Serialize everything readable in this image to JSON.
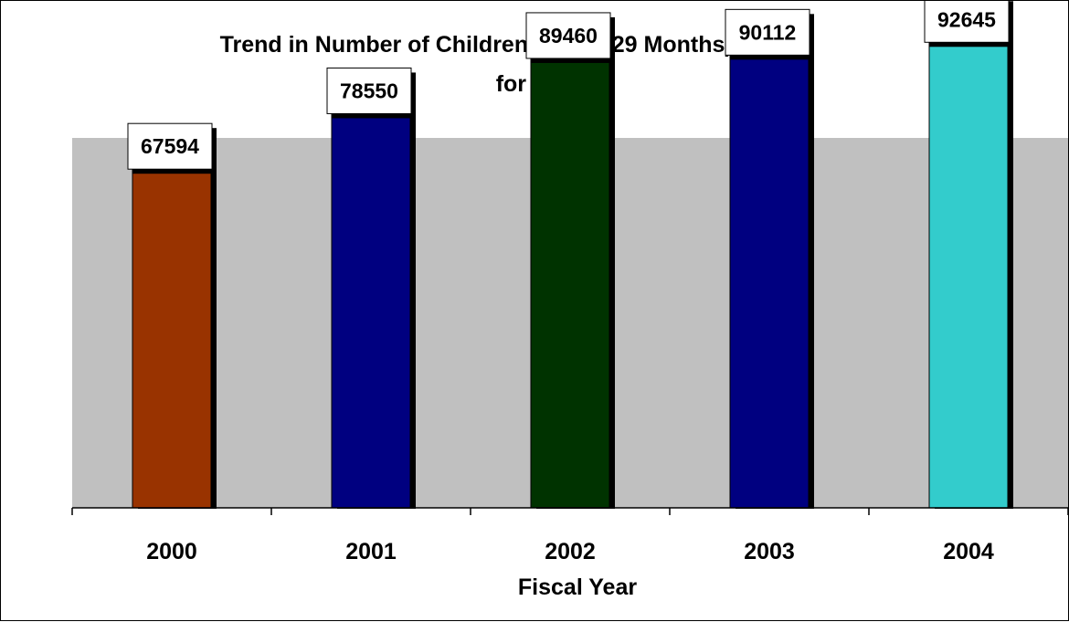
{
  "chart_data": {
    "type": "bar",
    "title": [
      "Trend in Number of Children (Age 6-29 Months) Tested",
      "for Lead"
    ],
    "xlabel": "Fiscal Year",
    "ylabel": "",
    "categories": [
      "2000",
      "2001",
      "2002",
      "2003",
      "2004"
    ],
    "values": [
      67594,
      78550,
      89460,
      90112,
      92645
    ],
    "bar_colors": [
      "#993300",
      "#000080",
      "#003300",
      "#000080",
      "#33CCCC"
    ],
    "plot_background": "#C0C0C0",
    "ylim": [
      0,
      100000
    ],
    "grid": false,
    "legend": "none",
    "data_labels": true
  }
}
